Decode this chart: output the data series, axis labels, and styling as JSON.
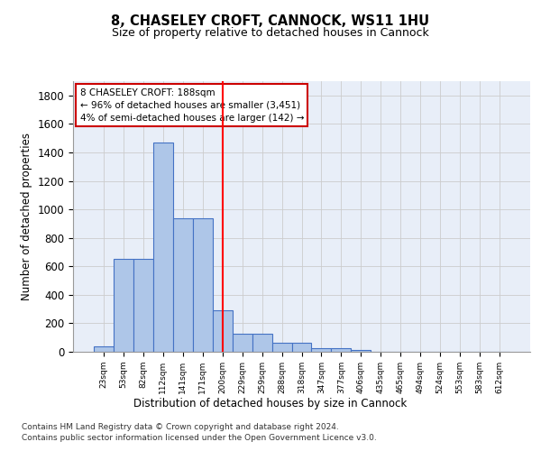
{
  "title1": "8, CHASELEY CROFT, CANNOCK, WS11 1HU",
  "title2": "Size of property relative to detached houses in Cannock",
  "xlabel": "Distribution of detached houses by size in Cannock",
  "ylabel": "Number of detached properties",
  "footer1": "Contains HM Land Registry data © Crown copyright and database right 2024.",
  "footer2": "Contains public sector information licensed under the Open Government Licence v3.0.",
  "annotation_line1": "8 CHASELEY CROFT: 188sqm",
  "annotation_line2": "← 96% of detached houses are smaller (3,451)",
  "annotation_line3": "4% of semi-detached houses are larger (142) →",
  "bar_labels": [
    "23sqm",
    "53sqm",
    "82sqm",
    "112sqm",
    "141sqm",
    "171sqm",
    "200sqm",
    "229sqm",
    "259sqm",
    "288sqm",
    "318sqm",
    "347sqm",
    "377sqm",
    "406sqm",
    "435sqm",
    "465sqm",
    "494sqm",
    "524sqm",
    "553sqm",
    "583sqm",
    "612sqm"
  ],
  "bar_values": [
    40,
    650,
    650,
    1470,
    935,
    935,
    290,
    125,
    125,
    65,
    65,
    25,
    25,
    15,
    0,
    0,
    0,
    0,
    0,
    0,
    0
  ],
  "bar_color": "#aec6e8",
  "bar_edge_color": "#4472c4",
  "grid_color": "#cccccc",
  "bg_color": "#e8eef8",
  "red_line_x": 6.0,
  "annotation_box_color": "#cc0000",
  "ylim": [
    0,
    1900
  ],
  "yticks": [
    0,
    200,
    400,
    600,
    800,
    1000,
    1200,
    1400,
    1600,
    1800
  ]
}
